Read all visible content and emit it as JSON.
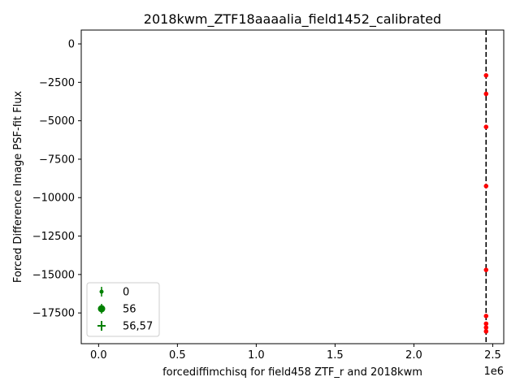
{
  "chart_data": {
    "type": "scatter",
    "title": "2018kwm_ZTF18aaaalia_field1452_calibrated",
    "xlabel": "forcediffimchisq for field458 ZTF_r and 2018kwm",
    "ylabel": "Forced Difference Image PSF-fit Flux",
    "x_offset_label": "1e6",
    "xlim": [
      -110000,
      2570000
    ],
    "ylim": [
      -19500,
      900
    ],
    "grid": false,
    "x_ticks": [
      0,
      500000,
      1000000,
      1500000,
      2000000,
      2500000
    ],
    "x_tick_labels": [
      "0.0",
      "0.5",
      "1.0",
      "1.5",
      "2.0",
      "2.5"
    ],
    "y_ticks": [
      0,
      -2500,
      -5000,
      -7500,
      -10000,
      -12500,
      -15000,
      -17500
    ],
    "y_tick_labels": [
      "0",
      "−2500",
      "−5000",
      "−7500",
      "−10000",
      "−12500",
      "−15000",
      "−17500"
    ],
    "vertical_line": {
      "x": 2458000,
      "style": "dashed",
      "color": "#000000"
    },
    "series": [
      {
        "color": "#ff0000",
        "x": [
          2458000,
          2458000,
          2458000,
          2458000,
          2458000,
          2458000,
          2458000,
          2458000,
          2458000
        ],
        "y": [
          -2050,
          -3250,
          -5400,
          -9250,
          -14700,
          -17700,
          -18200,
          -18450,
          -18700
        ]
      }
    ],
    "legend": {
      "placement": "lower-left",
      "color": "#008000",
      "entries": [
        {
          "label": "0",
          "marker": "errorbar-small"
        },
        {
          "label": "56",
          "marker": "errorbar-large"
        },
        {
          "label": "56,57",
          "marker": "errorbar-cross"
        }
      ]
    }
  }
}
